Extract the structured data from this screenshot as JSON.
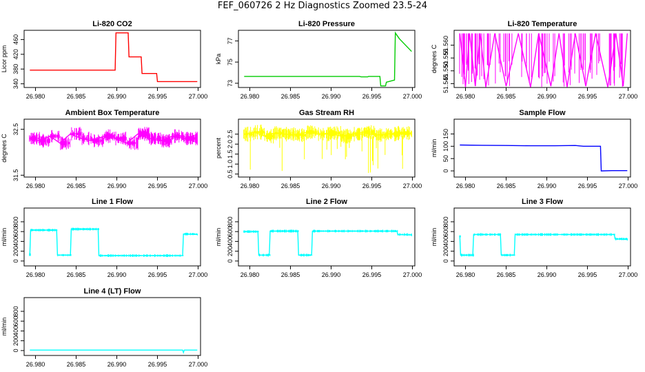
{
  "figure": {
    "title": "FEF_060726  2 Hz Diagnostics Zoomed 23.5-24"
  },
  "colors": {
    "red": "#ff0000",
    "green": "#00cc00",
    "magenta": "#ff00ff",
    "yellow": "#ffff00",
    "blue": "#0000ff",
    "cyan": "#00ffff",
    "axis": "#000000"
  },
  "chart_data": [
    {
      "type": "line",
      "title": "Li-820 CO2",
      "ylabel": "Licor ppm",
      "xlim": [
        26.9786,
        27.0003
      ],
      "ylim": [
        330,
        485
      ],
      "xticks": [
        26.98,
        26.985,
        26.99,
        26.995,
        27.0
      ],
      "xtick_labels": [
        "26.980",
        "26.985",
        "26.990",
        "26.995",
        "27.000"
      ],
      "yticks": [
        340,
        380,
        420,
        460
      ],
      "ytick_labels": [
        "340",
        "380",
        "420",
        "460"
      ],
      "color": "red",
      "series": [
        {
          "x": [
            26.9793,
            26.9898,
            26.9899,
            26.9914,
            26.9915,
            26.993,
            26.9931,
            26.9949,
            26.995,
            26.9999
          ],
          "y": [
            377,
            377,
            478,
            478,
            413,
            413,
            368,
            368,
            346,
            346
          ]
        }
      ]
    },
    {
      "type": "line",
      "title": "Li-820 Pressure",
      "ylabel": "kPa",
      "xlim": [
        26.9786,
        27.0003
      ],
      "ylim": [
        72.6,
        78.0
      ],
      "xticks": [
        26.98,
        26.985,
        26.99,
        26.995,
        27.0
      ],
      "xtick_labels": [
        "26.980",
        "26.985",
        "26.990",
        "26.995",
        "27.000"
      ],
      "yticks": [
        73,
        75,
        77
      ],
      "ytick_labels": [
        "73",
        "75",
        "77"
      ],
      "color": "green",
      "series": [
        {
          "x": [
            26.9793,
            26.9935,
            26.9937,
            26.9945,
            26.9946,
            26.996,
            26.9961,
            26.9967,
            26.9968,
            26.9978,
            26.9979,
            26.9984,
            26.9999
          ],
          "y": [
            73.65,
            73.65,
            73.6,
            73.6,
            73.65,
            73.65,
            72.75,
            72.75,
            73.1,
            73.3,
            77.75,
            77.2,
            76.0
          ]
        }
      ]
    },
    {
      "type": "line",
      "title": "Li-820 Temperature",
      "ylabel": "degrees C",
      "xlim": [
        26.9786,
        27.0003
      ],
      "ylim": [
        51.5435,
        51.5658
      ],
      "xticks": [
        26.98,
        26.985,
        26.99,
        26.995,
        27.0
      ],
      "xtick_labels": [
        "26.980",
        "26.985",
        "26.990",
        "26.995",
        "27.000"
      ],
      "yticks": [
        51.545,
        51.55,
        51.555,
        51.56
      ],
      "ytick_labels": [
        "51.545",
        "51.550",
        "51.555",
        "51.560"
      ],
      "color": "magenta",
      "series": [
        {
          "x": [
            26.9793,
            26.98,
            26.9805,
            26.9812,
            26.9818,
            26.9825,
            26.9836,
            26.985,
            26.9865,
            26.988,
            26.989,
            26.9905,
            26.9915,
            26.9925,
            26.9935,
            26.9948,
            26.996,
            26.9975,
            26.9985,
            26.9994,
            26.9999
          ],
          "y": [
            51.5646,
            51.5437,
            51.5646,
            51.544,
            51.5646,
            51.5437,
            51.5646,
            51.544,
            51.5646,
            51.5437,
            51.5646,
            51.544,
            51.5646,
            51.5437,
            51.5646,
            51.544,
            51.5646,
            51.5437,
            51.5646,
            51.544,
            51.5646
          ]
        }
      ]
    },
    {
      "type": "line",
      "title": "Ambient Box Temperature",
      "ylabel": "degrees C",
      "xlim": [
        26.9786,
        27.0003
      ],
      "ylim": [
        31.46,
        32.72
      ],
      "xticks": [
        26.98,
        26.985,
        26.99,
        26.995,
        27.0
      ],
      "xtick_labels": [
        "26.980",
        "26.985",
        "26.990",
        "26.995",
        "27.000"
      ],
      "yticks": [
        31.5,
        32.5
      ],
      "ytick_labels": [
        "31.5",
        "32.5"
      ],
      "color": "magenta",
      "series": [
        {
          "x": [
            26.9793,
            26.9805,
            26.9818,
            26.983,
            26.9843,
            26.9856,
            26.987,
            26.9884,
            26.9898,
            26.9912,
            26.9926,
            26.994,
            26.9954,
            26.9968,
            26.9982,
            26.9999
          ],
          "y": [
            32.3,
            32.25,
            32.35,
            32.2,
            32.4,
            32.3,
            32.25,
            32.35,
            32.3,
            32.2,
            32.4,
            32.3,
            32.25,
            32.35,
            32.3,
            32.3
          ]
        }
      ]
    },
    {
      "type": "line",
      "title": "Gas Stream RH",
      "ylabel": "percent",
      "xlim": [
        26.9786,
        27.0003
      ],
      "ylim": [
        0.35,
        3.25
      ],
      "xticks": [
        26.98,
        26.985,
        26.99,
        26.995,
        27.0
      ],
      "xtick_labels": [
        "26.980",
        "26.985",
        "26.990",
        "26.995",
        "27.000"
      ],
      "yticks": [
        0.5,
        1.0,
        1.5,
        2.0,
        2.5
      ],
      "ytick_labels": [
        "0.5",
        "1.0",
        "1.5",
        "2.0",
        "2.5"
      ],
      "color": "yellow",
      "series": [
        {
          "x": [
            26.9793,
            26.9805,
            26.9818,
            26.983,
            26.9843,
            26.9856,
            26.987,
            26.9884,
            26.9898,
            26.9912,
            26.9926,
            26.994,
            26.9954,
            26.9968,
            26.9982,
            26.9999
          ],
          "y": [
            2.5,
            2.6,
            2.4,
            2.55,
            2.5,
            2.45,
            2.6,
            2.5,
            2.55,
            2.4,
            2.5,
            2.6,
            2.45,
            2.5,
            2.55,
            2.5
          ]
        }
      ]
    },
    {
      "type": "line",
      "title": "Sample Flow",
      "ylabel": "ml/min",
      "xlim": [
        26.9786,
        27.0003
      ],
      "ylim": [
        -25,
        210
      ],
      "xticks": [
        26.98,
        26.985,
        26.99,
        26.995,
        27.0
      ],
      "xtick_labels": [
        "26.980",
        "26.985",
        "26.990",
        "26.995",
        "27.000"
      ],
      "yticks": [
        0,
        50,
        100,
        150
      ],
      "ytick_labels": [
        "0",
        "50",
        "100",
        "150"
      ],
      "color": "blue",
      "series": [
        {
          "x": [
            26.9793,
            26.982,
            26.985,
            26.988,
            26.991,
            26.9935,
            26.9945,
            26.9966,
            26.9967,
            26.998,
            26.9999
          ],
          "y": [
            105,
            104,
            103,
            102,
            102,
            103,
            100,
            100,
            0,
            1,
            1
          ]
        }
      ]
    },
    {
      "type": "line",
      "title": "Line 1 Flow",
      "ylabel": "ml/min",
      "xlim": [
        26.9786,
        27.0003
      ],
      "ylim": [
        -100,
        1080
      ],
      "xticks": [
        26.98,
        26.985,
        26.99,
        26.995,
        27.0
      ],
      "xtick_labels": [
        "26.980",
        "26.985",
        "26.990",
        "26.995",
        "27.000"
      ],
      "yticks": [
        0,
        200,
        400,
        600,
        800
      ],
      "ytick_labels": [
        "0",
        "200",
        "400",
        "600",
        "800"
      ],
      "color": "cyan",
      "series": [
        {
          "x": [
            26.9793,
            26.9794,
            26.9826,
            26.9827,
            26.9843,
            26.9844,
            26.9877,
            26.9878,
            26.9981,
            26.9982,
            26.9999
          ],
          "y": [
            130,
            630,
            630,
            120,
            120,
            650,
            650,
            110,
            110,
            550,
            540
          ]
        }
      ]
    },
    {
      "type": "line",
      "title": "Line 2 Flow",
      "ylabel": "ml/min",
      "xlim": [
        26.9786,
        27.0003
      ],
      "ylim": [
        -100,
        1080
      ],
      "xticks": [
        26.98,
        26.985,
        26.99,
        26.995,
        27.0
      ],
      "xtick_labels": [
        "26.980",
        "26.985",
        "26.990",
        "26.995",
        "27.000"
      ],
      "yticks": [
        0,
        200,
        400,
        600,
        800
      ],
      "ytick_labels": [
        "0",
        "200",
        "400",
        "600",
        "800"
      ],
      "color": "cyan",
      "series": [
        {
          "x": [
            26.9793,
            26.981,
            26.9811,
            26.9824,
            26.9825,
            26.9859,
            26.986,
            26.9876,
            26.9877,
            26.9981,
            26.9982,
            26.9999
          ],
          "y": [
            600,
            600,
            120,
            120,
            610,
            610,
            120,
            120,
            610,
            610,
            540,
            530
          ]
        }
      ]
    },
    {
      "type": "line",
      "title": "Line 3 Flow",
      "ylabel": "ml/min",
      "xlim": [
        26.9786,
        27.0003
      ],
      "ylim": [
        -100,
        1080
      ],
      "xticks": [
        26.98,
        26.985,
        26.99,
        26.995,
        27.0
      ],
      "xtick_labels": [
        "26.980",
        "26.985",
        "26.990",
        "26.995",
        "27.000"
      ],
      "yticks": [
        0,
        200,
        400,
        600,
        800
      ],
      "ytick_labels": [
        "0",
        "200",
        "400",
        "600",
        "800"
      ],
      "color": "cyan",
      "series": [
        {
          "x": [
            26.9793,
            26.9794,
            26.9809,
            26.981,
            26.9843,
            26.9844,
            26.986,
            26.9861,
            26.9983,
            26.9984,
            26.9999
          ],
          "y": [
            500,
            120,
            120,
            540,
            540,
            120,
            120,
            540,
            540,
            450,
            440
          ]
        }
      ]
    },
    {
      "type": "line",
      "title": "Line 4 (LT) Flow",
      "ylabel": "ml/min",
      "xlim": [
        26.9786,
        27.0003
      ],
      "ylim": [
        -100,
        1080
      ],
      "xticks": [
        26.98,
        26.985,
        26.99,
        26.995,
        27.0
      ],
      "xtick_labels": [
        "26.980",
        "26.985",
        "26.990",
        "26.995",
        "27.000"
      ],
      "yticks": [
        0,
        200,
        400,
        600,
        800
      ],
      "ytick_labels": [
        "0",
        "200",
        "400",
        "600",
        "800"
      ],
      "color": "cyan",
      "series": [
        {
          "x": [
            26.9793,
            26.985,
            26.99,
            26.995,
            26.9981,
            26.9982,
            26.9983,
            26.9999
          ],
          "y": [
            10,
            10,
            10,
            10,
            10,
            -40,
            10,
            10
          ]
        }
      ]
    }
  ]
}
